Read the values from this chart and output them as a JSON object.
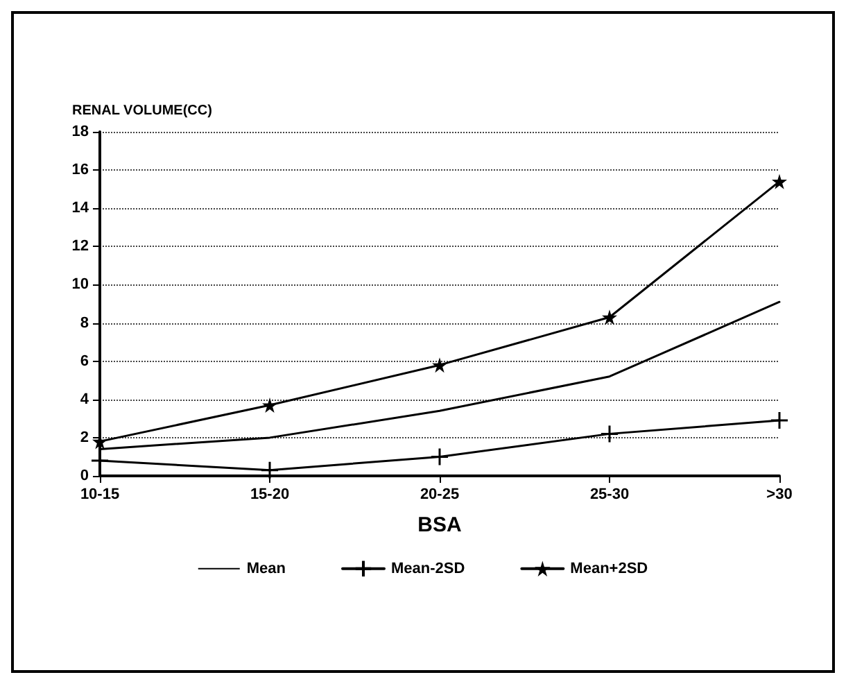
{
  "chart_data": {
    "type": "line",
    "ylabel": "RENAL VOLUME(CC)",
    "xlabel": "BSA",
    "categories": [
      "10-15",
      "15-20",
      "20-25",
      "25-30",
      ">30"
    ],
    "series": [
      {
        "name": "Mean",
        "color": "#000000",
        "marker": "none",
        "values": [
          1.4,
          2.0,
          3.4,
          5.2,
          9.1
        ]
      },
      {
        "name": "Mean-2SD",
        "color": "#000000",
        "marker": "cross",
        "values": [
          0.8,
          0.3,
          1.0,
          2.2,
          2.9
        ]
      },
      {
        "name": "Mean+2SD",
        "color": "#000000",
        "marker": "star",
        "values": [
          1.8,
          3.7,
          5.8,
          8.3,
          15.4
        ]
      }
    ],
    "ylim": [
      0,
      18
    ],
    "yticks": [
      0,
      2,
      4,
      6,
      8,
      10,
      12,
      14,
      16,
      18
    ],
    "grid": "y",
    "legend": "bottom",
    "line_style": "solid"
  }
}
